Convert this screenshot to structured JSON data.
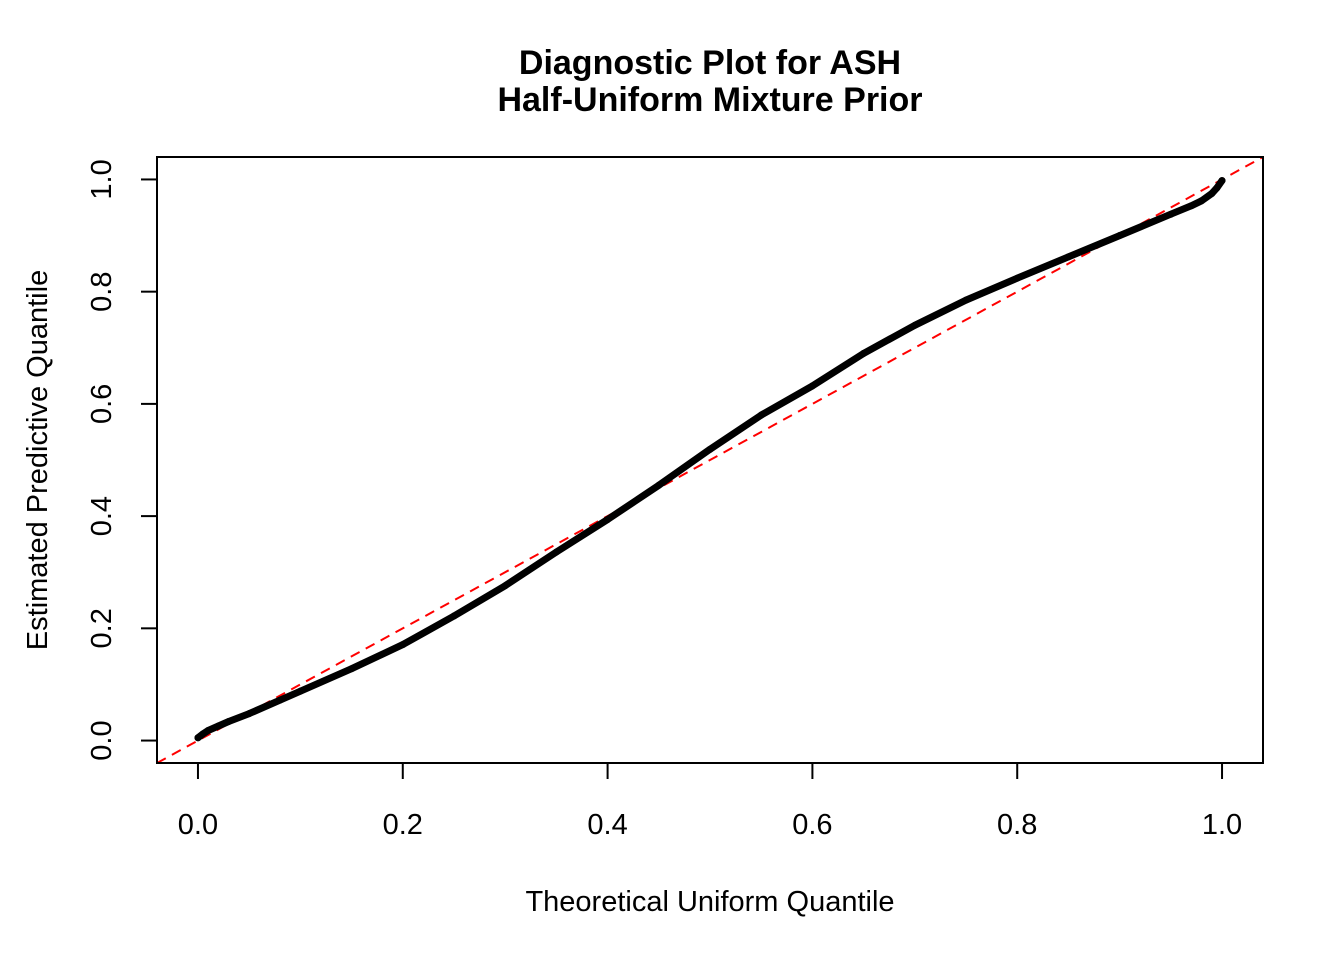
{
  "chart_data": {
    "type": "line",
    "title": "Diagnostic Plot for ASH",
    "subtitle": "Half-Uniform Mixture Prior",
    "xlabel": "Theoretical Uniform Quantile",
    "ylabel": "Estimated Predictive Quantile",
    "xlim": [
      -0.04,
      1.04
    ],
    "ylim": [
      -0.04,
      1.04
    ],
    "xticks": [
      "0.0",
      "0.2",
      "0.4",
      "0.6",
      "0.8",
      "1.0"
    ],
    "yticks": [
      "0.0",
      "0.2",
      "0.4",
      "0.6",
      "0.8",
      "1.0"
    ],
    "grid": false,
    "series": [
      {
        "color": "#000000",
        "style": "thick-points",
        "x": [
          0.0,
          0.005,
          0.01,
          0.02,
          0.03,
          0.05,
          0.08,
          0.1,
          0.15,
          0.2,
          0.25,
          0.3,
          0.35,
          0.4,
          0.45,
          0.5,
          0.55,
          0.6,
          0.65,
          0.7,
          0.75,
          0.8,
          0.85,
          0.9,
          0.95,
          0.97,
          0.98,
          0.99,
          0.995,
          1.0
        ],
        "y": [
          0.005,
          0.012,
          0.018,
          0.026,
          0.034,
          0.048,
          0.072,
          0.088,
          0.128,
          0.171,
          0.222,
          0.276,
          0.336,
          0.394,
          0.455,
          0.519,
          0.58,
          0.632,
          0.69,
          0.74,
          0.785,
          0.824,
          0.862,
          0.9,
          0.938,
          0.953,
          0.962,
          0.975,
          0.985,
          0.998
        ]
      }
    ],
    "reference_line": {
      "intercept": 0,
      "slope": 1,
      "color": "#ff0000",
      "style": "dashed"
    }
  }
}
